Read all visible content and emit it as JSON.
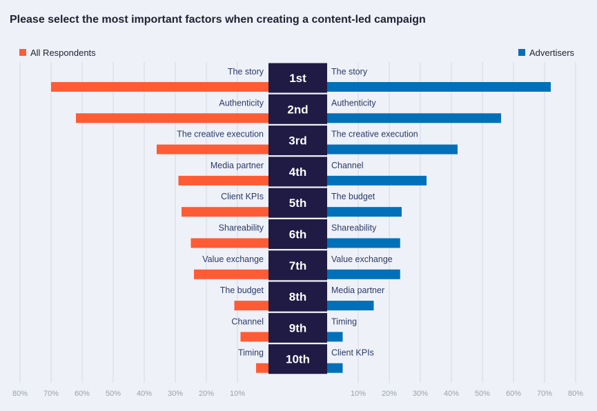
{
  "title": "Please select the most important factors when creating a content-led campaign",
  "chart_data": {
    "type": "bar",
    "orientation": "horizontal-diverging",
    "xlim": [
      0,
      80
    ],
    "ticks": [
      "10%",
      "20%",
      "30%",
      "40%",
      "50%",
      "60%",
      "70%",
      "80%"
    ],
    "grid": true,
    "ranks": [
      "1st",
      "2nd",
      "3rd",
      "4th",
      "5th",
      "6th",
      "7th",
      "8th",
      "9th",
      "10th"
    ],
    "series": [
      {
        "name": "All Respondents",
        "side": "left",
        "legend_position": "top-left",
        "color": "#ff5c35",
        "categories": [
          "The story",
          "Authenticity",
          "The creative execution",
          "Media partner",
          "Client KPIs",
          "Shareability",
          "Value exchange",
          "The budget",
          "Channel",
          "Timing"
        ],
        "values": [
          70,
          62,
          36,
          29,
          28,
          25,
          24,
          11,
          9,
          4
        ]
      },
      {
        "name": "Advertisers",
        "side": "right",
        "legend_position": "top-right",
        "color": "#0070b8",
        "categories": [
          "The story",
          "Authenticity",
          "The creative execution",
          "Channel",
          "The budget",
          "Shareability",
          "Value exchange",
          "Media partner",
          "Timing",
          "Client KPIs"
        ],
        "values": [
          72,
          56,
          42,
          32,
          24,
          23.5,
          23.5,
          15,
          5,
          5
        ]
      }
    ],
    "rank_box_color": "#1f1b44"
  }
}
